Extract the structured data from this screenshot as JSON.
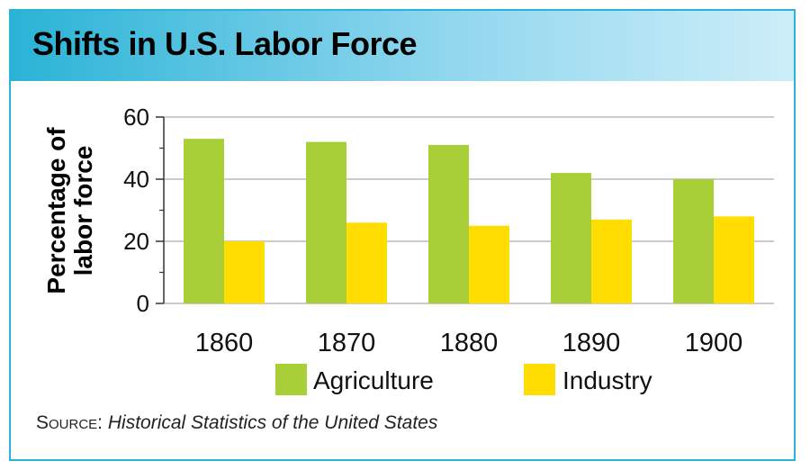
{
  "title": "Shifts in U.S. Labor Force",
  "source": {
    "label": "Source:",
    "text": "Historical Statistics of the United States"
  },
  "colors": {
    "agriculture": "#a8cf38",
    "industry": "#ffdd00",
    "frame": "#2ab3d6"
  },
  "chart_data": {
    "type": "bar",
    "title": "Shifts in U.S. Labor Force",
    "ylabel": "Percentage of labor force",
    "xlabel": "",
    "categories": [
      "1860",
      "1870",
      "1880",
      "1890",
      "1900"
    ],
    "series": [
      {
        "name": "Agriculture",
        "values": [
          53,
          52,
          51,
          42,
          40
        ]
      },
      {
        "name": "Industry",
        "values": [
          20,
          26,
          25,
          27,
          28
        ]
      }
    ],
    "ylim": [
      0,
      60
    ],
    "yticks": [
      0,
      20,
      40,
      60
    ],
    "grid": true,
    "legend": "bottom"
  }
}
